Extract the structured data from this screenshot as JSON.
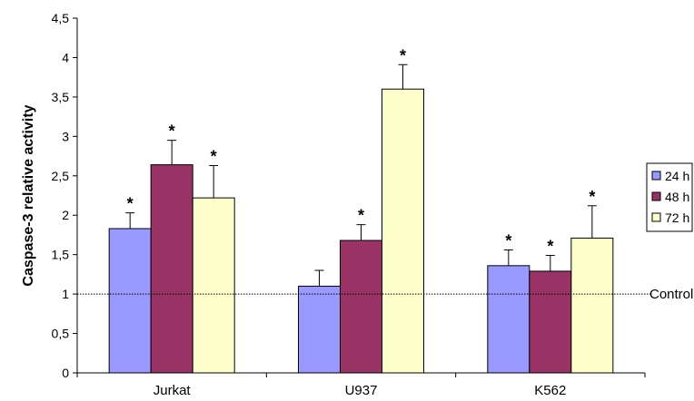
{
  "chart_data": {
    "type": "bar",
    "ylabel": "Caspase-3 relative activity",
    "xlabel": "",
    "ylim": [
      0,
      4.5
    ],
    "yticks": [
      "0",
      "0,5",
      "1",
      "1,5",
      "2",
      "2,5",
      "3",
      "3,5",
      "4",
      "4,5"
    ],
    "ytick_values": [
      0,
      0.5,
      1,
      1.5,
      2,
      2.5,
      3,
      3.5,
      4,
      4.5
    ],
    "categories": [
      "Jurkat",
      "U937",
      "K562"
    ],
    "series": [
      {
        "name": "24 h",
        "color": "#9999ff",
        "values": [
          1.83,
          1.1,
          1.36
        ],
        "errors": [
          0.2,
          0.2,
          0.2
        ],
        "significant": [
          "*",
          "",
          "*"
        ]
      },
      {
        "name": "48 h",
        "color": "#993366",
        "values": [
          2.64,
          1.68,
          1.29
        ],
        "errors": [
          0.31,
          0.2,
          0.2
        ],
        "significant": [
          "*",
          "*",
          "*"
        ]
      },
      {
        "name": "72 h",
        "color": "#ffffcc",
        "values": [
          2.22,
          3.6,
          1.71
        ],
        "errors": [
          0.41,
          0.31,
          0.41
        ],
        "significant": [
          "*",
          "*",
          "*"
        ]
      }
    ],
    "reference_line": {
      "value": 1,
      "label": "Control"
    },
    "grid": false,
    "legend": "right"
  }
}
